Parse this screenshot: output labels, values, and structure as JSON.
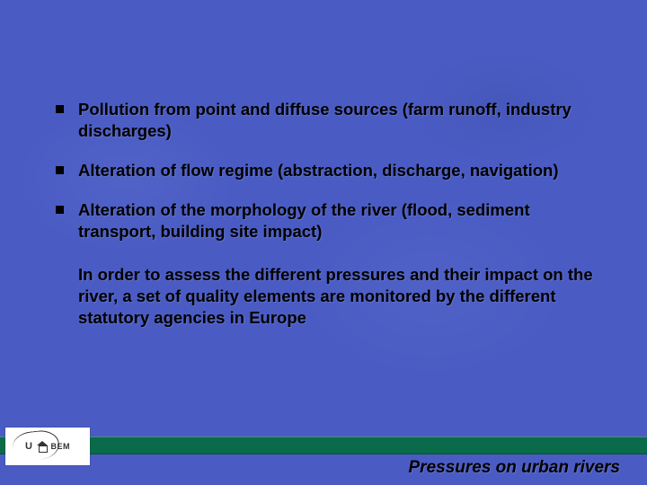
{
  "slide": {
    "background_color": "#4a5cc4",
    "text_color": "#000000",
    "bullet_color": "#000000",
    "footer_bar_color": "#0a6b4a",
    "font_family": "Verdana",
    "body_fontsize_pt": 14,
    "bullets": [
      "Pollution from point and diffuse sources (farm runoff, industry discharges)",
      "Alteration of flow regime (abstraction, discharge, navigation)",
      "Alteration of the morphology of the river (flood, sediment transport, building site impact)"
    ],
    "summary": "In order to assess the different pressures and their impact on the river, a set of quality elements are monitored by the different statutory agencies in Europe",
    "footer_title": "Pressures on urban rivers",
    "logo": {
      "left_text": "U",
      "right_text": "BEM"
    }
  }
}
